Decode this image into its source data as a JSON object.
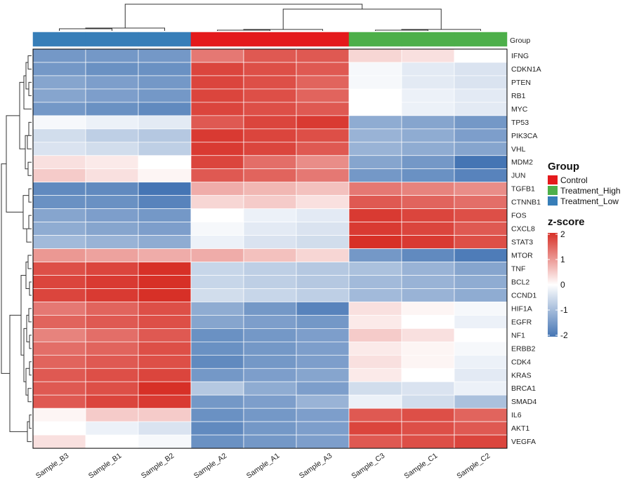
{
  "chart_data": {
    "type": "heatmap",
    "columns": [
      "Sample_B3",
      "Sample_B1",
      "Sample_B2",
      "Sample_A2",
      "Sample_A1",
      "Sample_A3",
      "Sample_C3",
      "Sample_C1",
      "Sample_C2"
    ],
    "column_groups": [
      "Treatment_Low",
      "Treatment_Low",
      "Treatment_Low",
      "Control",
      "Control",
      "Control",
      "Treatment_High",
      "Treatment_High",
      "Treatment_High"
    ],
    "rows": [
      "IFNG",
      "CDKN1A",
      "PTEN",
      "RB1",
      "MYC",
      "TP53",
      "PIK3CA",
      "VHL",
      "MDM2",
      "JUN",
      "TGFB1",
      "CTNNB1",
      "FOS",
      "CXCL8",
      "STAT3",
      "MTOR",
      "TNF",
      "BCL2",
      "CCND1",
      "HIF1A",
      "EGFR",
      "NF1",
      "ERBB2",
      "CDK4",
      "KRAS",
      "BRCA1",
      "SMAD4",
      "IL6",
      "AKT1",
      "VEGFA"
    ],
    "values": [
      [
        -1.5,
        -1.5,
        -1.5,
        1.3,
        1.6,
        1.6,
        0.4,
        0.3,
        0.0
      ],
      [
        -1.5,
        -1.6,
        -1.6,
        1.8,
        1.7,
        1.6,
        -0.1,
        -0.3,
        -0.4
      ],
      [
        -1.3,
        -1.4,
        -1.5,
        1.8,
        1.7,
        1.5,
        -0.1,
        -0.3,
        -0.4
      ],
      [
        -1.3,
        -1.4,
        -1.5,
        1.8,
        1.7,
        1.5,
        0.0,
        -0.2,
        -0.3
      ],
      [
        -1.5,
        -1.6,
        -1.7,
        1.8,
        1.7,
        1.6,
        0.0,
        -0.2,
        -0.3
      ],
      [
        -0.1,
        -0.2,
        -0.3,
        1.6,
        1.8,
        1.9,
        -1.2,
        -1.3,
        -1.5
      ],
      [
        -0.5,
        -0.7,
        -0.8,
        1.9,
        1.8,
        1.7,
        -1.1,
        -1.2,
        -1.4
      ],
      [
        -0.4,
        -0.5,
        -0.7,
        1.9,
        1.8,
        1.6,
        -1.1,
        -1.2,
        -1.3
      ],
      [
        0.3,
        0.2,
        0.0,
        1.8,
        1.4,
        1.1,
        -1.3,
        -1.5,
        -2.0
      ],
      [
        0.5,
        0.3,
        0.1,
        1.6,
        1.5,
        1.3,
        -1.5,
        -1.6,
        -1.8
      ],
      [
        -1.7,
        -1.7,
        -2.0,
        0.8,
        0.7,
        0.6,
        1.3,
        1.2,
        1.1
      ],
      [
        -1.6,
        -1.6,
        -1.8,
        0.4,
        0.5,
        0.3,
        1.6,
        1.5,
        1.4
      ],
      [
        -1.3,
        -1.4,
        -1.5,
        0.0,
        -0.2,
        -0.3,
        1.9,
        1.8,
        1.7
      ],
      [
        -1.2,
        -1.3,
        -1.4,
        -0.1,
        -0.3,
        -0.4,
        1.9,
        1.8,
        1.6
      ],
      [
        -1.0,
        -1.1,
        -1.2,
        -0.2,
        -0.4,
        -0.5,
        2.0,
        1.9,
        1.7
      ],
      [
        1.0,
        0.9,
        0.8,
        0.8,
        0.6,
        0.4,
        -1.5,
        -1.7,
        -1.9
      ],
      [
        1.7,
        1.8,
        2.0,
        -0.6,
        -0.7,
        -0.8,
        -0.9,
        -1.1,
        -1.3
      ],
      [
        1.8,
        1.9,
        2.0,
        -0.6,
        -0.7,
        -0.8,
        -1.0,
        -1.1,
        -1.2
      ],
      [
        1.8,
        1.9,
        2.0,
        -0.5,
        -0.6,
        -0.7,
        -1.0,
        -1.1,
        -1.2
      ],
      [
        1.3,
        1.5,
        1.7,
        -1.2,
        -1.5,
        -1.8,
        0.3,
        0.1,
        -0.1
      ],
      [
        1.5,
        1.6,
        1.7,
        -1.3,
        -1.4,
        -1.5,
        0.2,
        0.0,
        -0.2
      ],
      [
        1.2,
        1.4,
        1.6,
        -1.6,
        -1.5,
        -1.4,
        0.5,
        0.3,
        0.0
      ],
      [
        1.4,
        1.5,
        1.7,
        -1.6,
        -1.5,
        -1.4,
        0.2,
        0.1,
        -0.1
      ],
      [
        1.5,
        1.6,
        1.7,
        -1.7,
        -1.5,
        -1.4,
        0.3,
        0.1,
        -0.2
      ],
      [
        1.6,
        1.7,
        1.8,
        -1.5,
        -1.4,
        -1.3,
        0.2,
        0.0,
        -0.3
      ],
      [
        1.6,
        1.7,
        2.0,
        -0.8,
        -1.2,
        -1.4,
        -0.5,
        -0.4,
        -0.2
      ],
      [
        1.6,
        1.8,
        1.9,
        -1.5,
        -1.4,
        -1.1,
        -0.2,
        -0.5,
        -0.9
      ],
      [
        0.1,
        0.5,
        0.5,
        -1.6,
        -1.5,
        -1.4,
        1.6,
        1.7,
        1.5
      ],
      [
        0.0,
        -0.2,
        -0.4,
        -1.7,
        -1.5,
        -1.4,
        1.8,
        1.7,
        1.6
      ],
      [
        0.3,
        0.0,
        -0.1,
        -1.6,
        -1.5,
        -1.4,
        1.6,
        1.7,
        1.8
      ]
    ],
    "group_label": "Group",
    "groups": [
      {
        "name": "Control",
        "color": "#E41A1C"
      },
      {
        "name": "Treatment_High",
        "color": "#4DAF4A"
      },
      {
        "name": "Treatment_Low",
        "color": "#377EB8"
      }
    ],
    "colorbar": {
      "title": "z-score",
      "ticks": [
        "2",
        "1",
        "0",
        "-1",
        "-2"
      ],
      "range": [
        -2,
        2
      ],
      "low_color": "#4575B4",
      "mid_color": "#FFFFFF",
      "high_color": "#D73027"
    }
  }
}
